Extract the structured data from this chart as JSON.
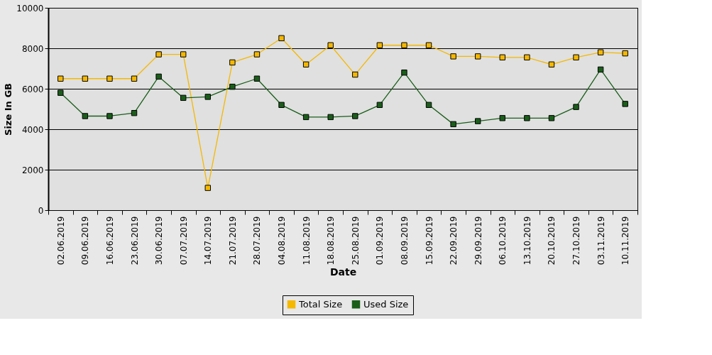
{
  "chart_data": {
    "type": "line",
    "xlabel": "Date",
    "ylabel": "Size In GB",
    "categories": [
      "02.06.2019",
      "09.06.2019",
      "16.06.2019",
      "23.06.2019",
      "30.06.2019",
      "07.07.2019",
      "14.07.2019",
      "21.07.2019",
      "28.07.2019",
      "04.08.2019",
      "11.08.2019",
      "18.08.2019",
      "25.08.2019",
      "01.09.2019",
      "08.09.2019",
      "15.09.2019",
      "22.09.2019",
      "29.09.2019",
      "06.10.2019",
      "13.10.2019",
      "20.10.2019",
      "27.10.2019",
      "03.11.2019",
      "10.11.2019"
    ],
    "series": [
      {
        "name": "Total Size",
        "color": "#f5b800",
        "values": [
          6500,
          6500,
          6500,
          6500,
          7700,
          7700,
          1100,
          7300,
          7700,
          8500,
          7200,
          8150,
          6700,
          8150,
          8150,
          8150,
          7600,
          7600,
          7550,
          7550,
          7200,
          7550,
          7800,
          7750
        ]
      },
      {
        "name": "Used Size",
        "color": "#1a5e1a",
        "values": [
          5800,
          4650,
          4650,
          4800,
          6600,
          5550,
          5600,
          6100,
          6500,
          5200,
          4600,
          4600,
          4650,
          5200,
          6800,
          5200,
          4250,
          4400,
          4550,
          4550,
          4550,
          5100,
          6950,
          5250
        ]
      }
    ],
    "ylim": [
      0,
      10000
    ],
    "yticks": [
      0,
      2000,
      4000,
      6000,
      8000,
      10000
    ],
    "grid": "y",
    "legend": "bottom",
    "marker": "square",
    "line_style": "solid"
  }
}
